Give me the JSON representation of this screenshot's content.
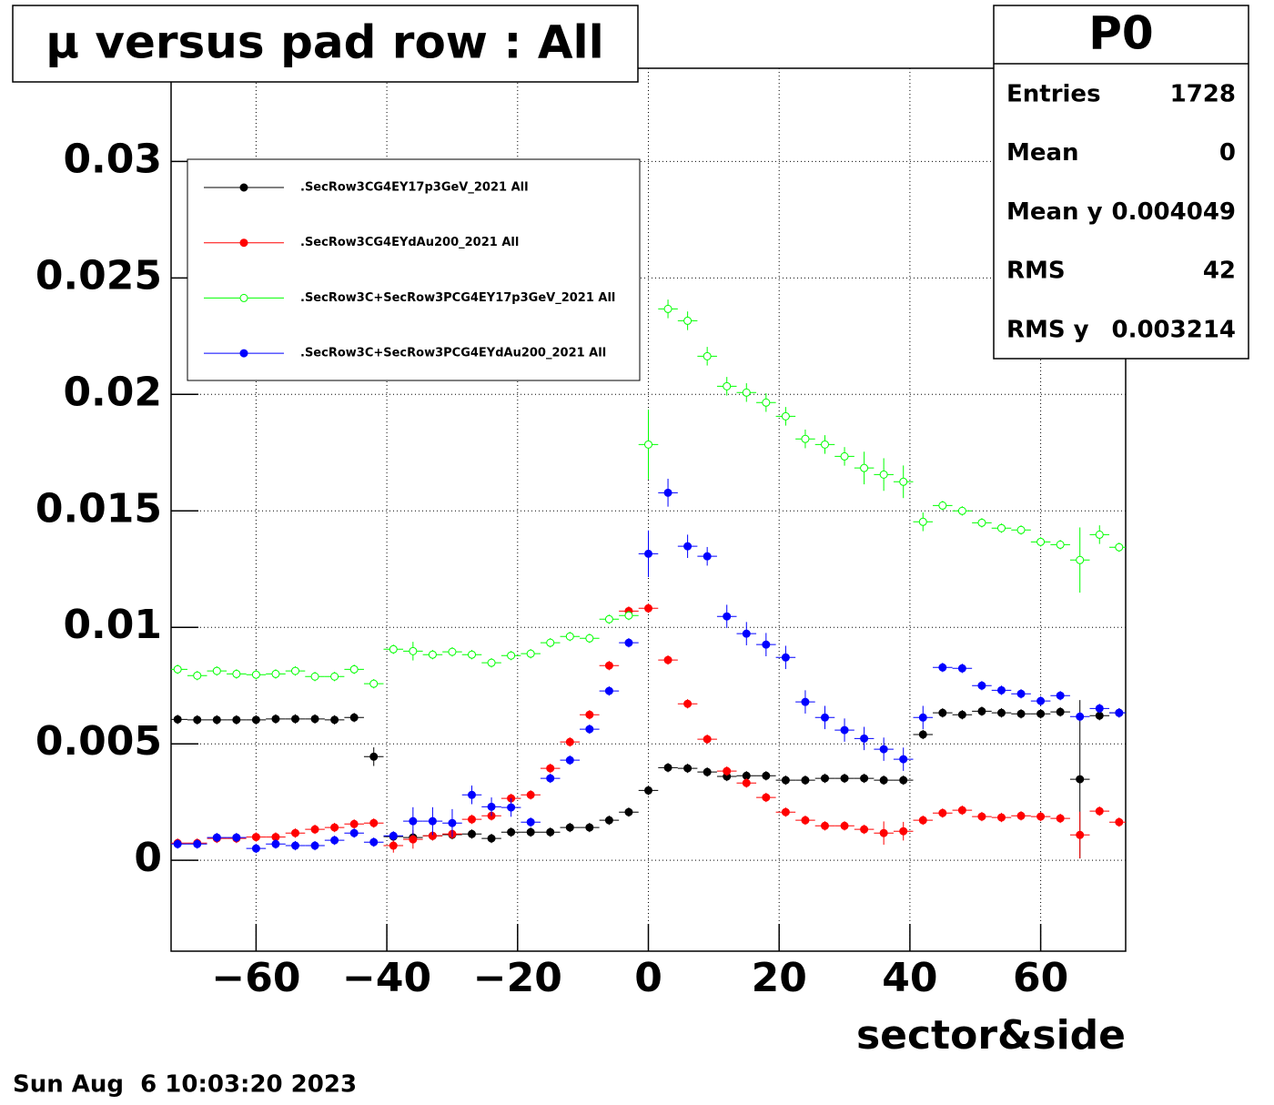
{
  "chart_data": {
    "type": "errorbar",
    "title": "μ versus pad row : All",
    "x_label": "sector&side",
    "date": "Sun Aug  6 10:03:20 2023",
    "xlim": [
      -73,
      73
    ],
    "ylim": [
      -0.0039,
      0.034
    ],
    "xticks": [
      {
        "value": -60,
        "label": "−60"
      },
      {
        "value": -40,
        "label": "−40"
      },
      {
        "value": -20,
        "label": "−20"
      },
      0,
      20,
      40,
      60
    ],
    "yticks": [
      0,
      0.005,
      0.01,
      0.015,
      0.02,
      0.025,
      0.03
    ],
    "grid": true,
    "xerr": 1.5,
    "x": [
      -72,
      -69,
      -66,
      -63,
      -60,
      -57,
      -54,
      -51,
      -48,
      -45,
      -42,
      -39,
      -36,
      -33,
      -30,
      -27,
      -24,
      -21,
      -18,
      -15,
      -12,
      -9,
      -6,
      -3,
      0,
      3,
      6,
      9,
      12,
      15,
      18,
      21,
      24,
      27,
      30,
      33,
      36,
      39,
      42,
      45,
      48,
      51,
      54,
      57,
      60,
      63,
      66,
      69,
      72
    ],
    "series": [
      {
        "name": ".SecRow3CG4EY17p3GeV_2021 All",
        "color": "#000000",
        "marker": "filled",
        "values": [
          0.00605,
          0.00603,
          0.00603,
          0.00603,
          0.00603,
          0.00607,
          0.00607,
          0.00607,
          0.00603,
          0.00613,
          0.00445,
          0.00102,
          0.00098,
          0.00105,
          0.0011,
          0.00113,
          0.00094,
          0.00121,
          0.00121,
          0.00121,
          0.00141,
          0.00141,
          0.00172,
          0.00207,
          0.003,
          0.00398,
          0.00395,
          0.00379,
          0.0036,
          0.00363,
          0.00363,
          0.00344,
          0.00344,
          0.00352,
          0.00352,
          0.00352,
          0.00344,
          0.00344,
          0.0054,
          0.00633,
          0.00625,
          0.0064,
          0.00633,
          0.00629,
          0.00629,
          0.00637,
          0.00348,
          0.00621,
          0.00633
        ],
        "errors": [
          0.0002,
          0.0002,
          0.0002,
          0.0002,
          0.0002,
          0.0002,
          0.0002,
          0.0002,
          0.0002,
          0.0002,
          0.0004,
          0.0002,
          0.0002,
          0.0002,
          0.0002,
          0.0002,
          0.0002,
          0.0002,
          0.0002,
          0.0002,
          0.0002,
          0.0002,
          0.0002,
          0.0002,
          0.0002,
          0.0002,
          0.0002,
          0.0002,
          0.0002,
          0.0002,
          0.0002,
          0.0002,
          0.0002,
          0.0002,
          0.0002,
          0.0002,
          0.0002,
          0.0002,
          0.0002,
          0.0002,
          0.0002,
          0.0002,
          0.0002,
          0.0002,
          0.0002,
          0.0002,
          0.0034,
          0.0002,
          0.0002
        ]
      },
      {
        "name": ".SecRow3CG4EYdAu200_2021 All",
        "color": "#ff0000",
        "marker": "filled",
        "values": [
          0.00074,
          0.00074,
          0.00094,
          0.00094,
          0.001,
          0.001,
          0.00117,
          0.00133,
          0.00141,
          0.00156,
          0.0016,
          0.00063,
          0.0009,
          0.00105,
          0.00113,
          0.00176,
          0.00191,
          0.00266,
          0.00281,
          0.00395,
          0.00508,
          0.00625,
          0.00836,
          0.0107,
          0.01082,
          0.0086,
          0.00672,
          0.0052,
          0.00383,
          0.00332,
          0.0027,
          0.00207,
          0.00172,
          0.00148,
          0.00148,
          0.00133,
          0.00117,
          0.00125,
          0.00172,
          0.00203,
          0.00215,
          0.00188,
          0.00184,
          0.00191,
          0.00188,
          0.0018,
          0.00109,
          0.00211,
          0.00164
        ],
        "errors": [
          0.0002,
          0.0002,
          0.0002,
          0.0002,
          0.0002,
          0.0002,
          0.0002,
          0.0002,
          0.0002,
          0.0002,
          0.0002,
          0.0003,
          0.0004,
          0.0002,
          0.0002,
          0.0002,
          0.0002,
          0.0002,
          0.0002,
          0.0002,
          0.0002,
          0.0002,
          0.0002,
          0.0002,
          0.0002,
          0.0002,
          0.0002,
          0.0002,
          0.0002,
          0.0002,
          0.0002,
          0.0002,
          0.0002,
          0.0002,
          0.0002,
          0.0002,
          0.0005,
          0.0004,
          0.0002,
          0.0002,
          0.0002,
          0.0002,
          0.0002,
          0.0002,
          0.0002,
          0.0002,
          0.001,
          0.0002,
          0.0002
        ]
      },
      {
        "name": ".SecRow3C+SecRow3PCG4EY17p3GeV_2021 All",
        "color": "#00ff00",
        "marker": "open",
        "values": [
          0.0082,
          0.00793,
          0.00813,
          0.008,
          0.00797,
          0.008,
          0.00813,
          0.00789,
          0.00789,
          0.0082,
          0.00758,
          0.00906,
          0.00898,
          0.00883,
          0.00895,
          0.00883,
          0.00848,
          0.00879,
          0.00887,
          0.00934,
          0.00961,
          0.00953,
          0.01035,
          0.01051,
          0.01785,
          0.02367,
          0.02316,
          0.02164,
          0.02035,
          0.02008,
          0.01965,
          0.01906,
          0.01809,
          0.01785,
          0.01734,
          0.01684,
          0.01656,
          0.01625,
          0.01453,
          0.01523,
          0.015,
          0.01449,
          0.01426,
          0.01418,
          0.01367,
          0.01355,
          0.01289,
          0.01398,
          0.01344
        ],
        "errors": [
          0.0002,
          0.0002,
          0.0002,
          0.0002,
          0.0002,
          0.0002,
          0.0002,
          0.0002,
          0.0002,
          0.0002,
          0.0002,
          0.0002,
          0.0004,
          0.0002,
          0.0002,
          0.0002,
          0.0002,
          0.0002,
          0.0002,
          0.0002,
          0.0002,
          0.0002,
          0.0002,
          0.0002,
          0.0015,
          0.0004,
          0.0004,
          0.0004,
          0.0004,
          0.0004,
          0.0004,
          0.0004,
          0.0004,
          0.0004,
          0.0004,
          0.0007,
          0.0007,
          0.0007,
          0.0004,
          0.0002,
          0.0002,
          0.0002,
          0.0002,
          0.0002,
          0.0002,
          0.0002,
          0.0014,
          0.0004,
          0.0002
        ]
      },
      {
        "name": ".SecRow3C+SecRow3PCG4EYdAu200_2021 All",
        "color": "#0000ff",
        "marker": "filled",
        "values": [
          0.0007,
          0.0007,
          0.00098,
          0.00098,
          0.00051,
          0.0007,
          0.00063,
          0.00063,
          0.00086,
          0.00117,
          0.00078,
          0.00105,
          0.00168,
          0.00168,
          0.0016,
          0.00281,
          0.0023,
          0.00227,
          0.00164,
          0.00352,
          0.0043,
          0.00563,
          0.00727,
          0.00934,
          0.01316,
          0.01578,
          0.01348,
          0.01305,
          0.01047,
          0.00973,
          0.00926,
          0.00871,
          0.0068,
          0.00613,
          0.00559,
          0.00523,
          0.00477,
          0.00434,
          0.00613,
          0.00828,
          0.00824,
          0.0075,
          0.0073,
          0.00715,
          0.00684,
          0.00707,
          0.00617,
          0.00652,
          0.00633
        ],
        "errors": [
          0.0002,
          0.0002,
          0.0002,
          0.0002,
          0.0002,
          0.0002,
          0.0002,
          0.0002,
          0.0002,
          0.0002,
          0.0002,
          0.0002,
          0.0006,
          0.0006,
          0.0006,
          0.0004,
          0.0004,
          0.0004,
          0.0002,
          0.0002,
          0.0002,
          0.0002,
          0.0002,
          0.0002,
          0.001,
          0.0006,
          0.0005,
          0.0004,
          0.0005,
          0.0005,
          0.0005,
          0.0005,
          0.0005,
          0.0005,
          0.0005,
          0.0005,
          0.0005,
          0.0005,
          0.0005,
          0.0002,
          0.0002,
          0.0002,
          0.0002,
          0.0002,
          0.0002,
          0.0002,
          0.0002,
          0.0002,
          0.0002
        ]
      }
    ],
    "stats": {
      "title": "P0",
      "rows": [
        {
          "label": "Entries",
          "value": 1728
        },
        {
          "label": "Mean",
          "value": 0
        },
        {
          "label": "Mean y",
          "value": 0.004049
        },
        {
          "label": "RMS",
          "value": 42
        },
        {
          "label": "RMS y",
          "value": 0.003214
        }
      ]
    }
  }
}
